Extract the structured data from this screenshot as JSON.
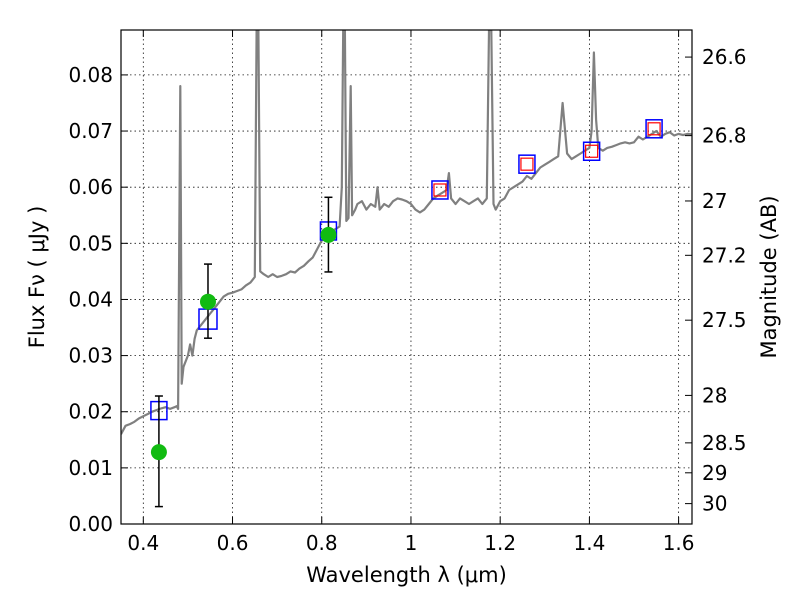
{
  "chart_data": {
    "type": "line",
    "xlabel": "Wavelength  λ (μm)",
    "ylabel": "Flux  Fν  ( μJy )",
    "y2label": "Magnitude (AB)",
    "xlim": [
      0.35,
      1.63
    ],
    "ylim": [
      0.0,
      0.088
    ],
    "grid": true,
    "x_ticks": [
      0.4,
      0.6,
      0.8,
      1.0,
      1.2,
      1.4,
      1.6
    ],
    "x_tick_labels": [
      "0.4",
      "0.6",
      "0.8",
      "1",
      "1.2",
      "1.4",
      "1.6"
    ],
    "y_ticks": [
      0.0,
      0.01,
      0.02,
      0.03,
      0.04,
      0.05,
      0.06,
      0.07,
      0.08
    ],
    "y_tick_labels": [
      "0.00",
      "0.01",
      "0.02",
      "0.03",
      "0.04",
      "0.05",
      "0.06",
      "0.07",
      "0.08"
    ],
    "y2_tick_labels": [
      "26.6",
      "26.8",
      "27",
      "27.2",
      "27.5",
      "28",
      "28.5",
      "29",
      "30"
    ],
    "colors": {
      "spectrum": "#808080",
      "model_box": "#0000ff",
      "observed_box": "#ff0000",
      "observed_point": "#11bb11",
      "error_bar": "#000000"
    },
    "spectrum": {
      "points": [
        [
          0.35,
          0.016
        ],
        [
          0.36,
          0.0175
        ],
        [
          0.37,
          0.0178
        ],
        [
          0.38,
          0.0182
        ],
        [
          0.39,
          0.0188
        ],
        [
          0.4,
          0.0192
        ],
        [
          0.41,
          0.0196
        ],
        [
          0.42,
          0.02
        ],
        [
          0.43,
          0.0203
        ],
        [
          0.44,
          0.0206
        ],
        [
          0.45,
          0.0208
        ],
        [
          0.46,
          0.0205
        ],
        [
          0.47,
          0.0208
        ],
        [
          0.475,
          0.021
        ],
        [
          0.478,
          0.0205
        ],
        [
          0.483,
          0.078
        ],
        [
          0.486,
          0.025
        ],
        [
          0.49,
          0.028
        ],
        [
          0.5,
          0.03
        ],
        [
          0.505,
          0.032
        ],
        [
          0.51,
          0.03
        ],
        [
          0.515,
          0.033
        ],
        [
          0.52,
          0.0345
        ],
        [
          0.53,
          0.0355
        ],
        [
          0.54,
          0.0365
        ],
        [
          0.55,
          0.0375
        ],
        [
          0.56,
          0.0385
        ],
        [
          0.57,
          0.0395
        ],
        [
          0.58,
          0.0405
        ],
        [
          0.59,
          0.041
        ],
        [
          0.6,
          0.0412
        ],
        [
          0.61,
          0.0415
        ],
        [
          0.62,
          0.0418
        ],
        [
          0.63,
          0.0425
        ],
        [
          0.64,
          0.043
        ],
        [
          0.645,
          0.0435
        ],
        [
          0.65,
          0.044
        ],
        [
          0.654,
          0.088
        ],
        [
          0.658,
          0.088
        ],
        [
          0.662,
          0.045
        ],
        [
          0.67,
          0.0445
        ],
        [
          0.68,
          0.044
        ],
        [
          0.69,
          0.0445
        ],
        [
          0.7,
          0.044
        ],
        [
          0.71,
          0.0442
        ],
        [
          0.72,
          0.0445
        ],
        [
          0.73,
          0.045
        ],
        [
          0.74,
          0.0448
        ],
        [
          0.75,
          0.0455
        ],
        [
          0.76,
          0.046
        ],
        [
          0.77,
          0.0468
        ],
        [
          0.78,
          0.0475
        ],
        [
          0.79,
          0.049
        ],
        [
          0.8,
          0.0505
        ],
        [
          0.81,
          0.051
        ],
        [
          0.82,
          0.052
        ],
        [
          0.83,
          0.0525
        ],
        [
          0.84,
          0.053
        ],
        [
          0.845,
          0.06
        ],
        [
          0.848,
          0.088
        ],
        [
          0.852,
          0.088
        ],
        [
          0.855,
          0.054
        ],
        [
          0.86,
          0.0545
        ],
        [
          0.865,
          0.078
        ],
        [
          0.868,
          0.055
        ],
        [
          0.875,
          0.056
        ],
        [
          0.88,
          0.057
        ],
        [
          0.89,
          0.0575
        ],
        [
          0.9,
          0.056
        ],
        [
          0.91,
          0.057
        ],
        [
          0.92,
          0.0565
        ],
        [
          0.925,
          0.06
        ],
        [
          0.93,
          0.056
        ],
        [
          0.94,
          0.057
        ],
        [
          0.95,
          0.0565
        ],
        [
          0.96,
          0.0575
        ],
        [
          0.97,
          0.058
        ],
        [
          0.98,
          0.0578
        ],
        [
          0.99,
          0.0575
        ],
        [
          1.0,
          0.057
        ],
        [
          1.01,
          0.056
        ],
        [
          1.02,
          0.0555
        ],
        [
          1.03,
          0.056
        ],
        [
          1.04,
          0.057
        ],
        [
          1.05,
          0.058
        ],
        [
          1.06,
          0.0585
        ],
        [
          1.07,
          0.059
        ],
        [
          1.08,
          0.0595
        ],
        [
          1.085,
          0.0625
        ],
        [
          1.09,
          0.058
        ],
        [
          1.1,
          0.057
        ],
        [
          1.11,
          0.058
        ],
        [
          1.12,
          0.0575
        ],
        [
          1.13,
          0.057
        ],
        [
          1.14,
          0.0575
        ],
        [
          1.15,
          0.058
        ],
        [
          1.16,
          0.057
        ],
        [
          1.17,
          0.058
        ],
        [
          1.175,
          0.088
        ],
        [
          1.18,
          0.088
        ],
        [
          1.185,
          0.057
        ],
        [
          1.19,
          0.056
        ],
        [
          1.2,
          0.0575
        ],
        [
          1.21,
          0.058
        ],
        [
          1.22,
          0.0595
        ],
        [
          1.23,
          0.06
        ],
        [
          1.24,
          0.0605
        ],
        [
          1.25,
          0.061
        ],
        [
          1.26,
          0.062
        ],
        [
          1.27,
          0.0615
        ],
        [
          1.28,
          0.0625
        ],
        [
          1.29,
          0.0635
        ],
        [
          1.3,
          0.064
        ],
        [
          1.31,
          0.0645
        ],
        [
          1.32,
          0.065
        ],
        [
          1.33,
          0.0655
        ],
        [
          1.34,
          0.075
        ],
        [
          1.35,
          0.066
        ],
        [
          1.36,
          0.065
        ],
        [
          1.37,
          0.0655
        ],
        [
          1.38,
          0.066
        ],
        [
          1.39,
          0.0665
        ],
        [
          1.4,
          0.067
        ],
        [
          1.405,
          0.07
        ],
        [
          1.41,
          0.084
        ],
        [
          1.415,
          0.072
        ],
        [
          1.42,
          0.067
        ],
        [
          1.43,
          0.0665
        ],
        [
          1.44,
          0.067
        ],
        [
          1.45,
          0.0672
        ],
        [
          1.46,
          0.0675
        ],
        [
          1.47,
          0.0678
        ],
        [
          1.48,
          0.068
        ],
        [
          1.49,
          0.0678
        ],
        [
          1.5,
          0.068
        ],
        [
          1.51,
          0.069
        ],
        [
          1.52,
          0.0685
        ],
        [
          1.53,
          0.069
        ],
        [
          1.54,
          0.0695
        ],
        [
          1.55,
          0.07
        ],
        [
          1.56,
          0.069
        ],
        [
          1.57,
          0.0695
        ],
        [
          1.58,
          0.0698
        ],
        [
          1.59,
          0.0692
        ],
        [
          1.6,
          0.0695
        ],
        [
          1.61,
          0.0693
        ],
        [
          1.62,
          0.0695
        ],
        [
          1.63,
          0.0694
        ]
      ]
    },
    "model_boxes": [
      {
        "x": 0.435,
        "y": 0.0202,
        "size": "small"
      },
      {
        "x": 0.545,
        "y": 0.0365,
        "size": "large"
      },
      {
        "x": 0.815,
        "y": 0.0522,
        "size": "small"
      },
      {
        "x": 1.065,
        "y": 0.0595,
        "size": "small"
      },
      {
        "x": 1.26,
        "y": 0.0641,
        "size": "small"
      },
      {
        "x": 1.405,
        "y": 0.0664,
        "size": "small"
      },
      {
        "x": 1.545,
        "y": 0.0704,
        "size": "small"
      }
    ],
    "observed_boxes": [
      {
        "x": 1.065,
        "y": 0.0595
      },
      {
        "x": 1.26,
        "y": 0.0641
      },
      {
        "x": 1.405,
        "y": 0.0664
      },
      {
        "x": 1.545,
        "y": 0.0704
      }
    ],
    "observed_points": [
      {
        "x": 0.435,
        "y": 0.0128,
        "yerr_low": 0.0031,
        "yerr_high": 0.0228
      },
      {
        "x": 0.545,
        "y": 0.0396,
        "yerr_low": 0.0331,
        "yerr_high": 0.0463
      },
      {
        "x": 0.815,
        "y": 0.0515,
        "yerr_low": 0.0449,
        "yerr_high": 0.0582
      }
    ]
  }
}
